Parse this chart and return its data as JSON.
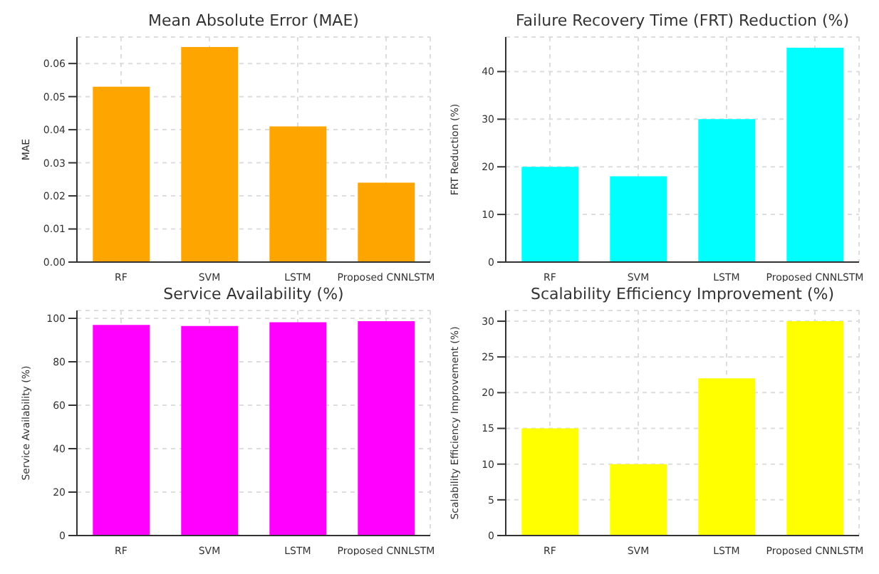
{
  "chart_data": [
    {
      "type": "bar",
      "title": "Mean Absolute Error (MAE)",
      "ylabel": "MAE",
      "categories": [
        "RF",
        "SVM",
        "LSTM",
        "Proposed CNNLSTM"
      ],
      "values": [
        0.053,
        0.065,
        0.041,
        0.024
      ],
      "color": "#ffa500",
      "ylim": [
        0,
        0.068
      ],
      "yticks": [
        {
          "value": 0,
          "label": "0.00"
        },
        {
          "value": 0.01,
          "label": "0.01"
        },
        {
          "value": 0.02,
          "label": "0.02"
        },
        {
          "value": 0.03,
          "label": "0.03"
        },
        {
          "value": 0.04,
          "label": "0.04"
        },
        {
          "value": 0.05,
          "label": "0.05"
        },
        {
          "value": 0.06,
          "label": "0.06"
        }
      ],
      "grid": true
    },
    {
      "type": "bar",
      "title": "Failure Recovery Time (FRT) Reduction (%)",
      "ylabel": "FRT Reduction (%)",
      "categories": [
        "RF",
        "SVM",
        "LSTM",
        "Proposed CNNLSTM"
      ],
      "values": [
        20,
        18,
        30,
        45
      ],
      "color": "#00ffff",
      "ylim": [
        0,
        47.25
      ],
      "yticks": [
        0,
        10,
        20,
        30,
        40
      ],
      "grid": true
    },
    {
      "type": "bar",
      "title": "Service Availability (%)",
      "ylabel": "Service Availability (%)",
      "categories": [
        "RF",
        "SVM",
        "LSTM",
        "Proposed CNNLSTM"
      ],
      "values": [
        97.0,
        96.5,
        98.2,
        98.7
      ],
      "color": "#ff00ff",
      "ylim": [
        0,
        103.6
      ],
      "yticks": [
        0,
        20,
        40,
        60,
        80,
        100
      ],
      "grid": true
    },
    {
      "type": "bar",
      "title": "Scalability Efficiency Improvement (%)",
      "ylabel": "Scalability Efficiency Improvement (%)",
      "categories": [
        "RF",
        "SVM",
        "LSTM",
        "Proposed CNNLSTM"
      ],
      "values": [
        15,
        10,
        22,
        30
      ],
      "color": "#ffff00",
      "ylim": [
        0,
        31.5
      ],
      "yticks": [
        0,
        5,
        10,
        15,
        20,
        25,
        30
      ],
      "grid": true
    }
  ]
}
